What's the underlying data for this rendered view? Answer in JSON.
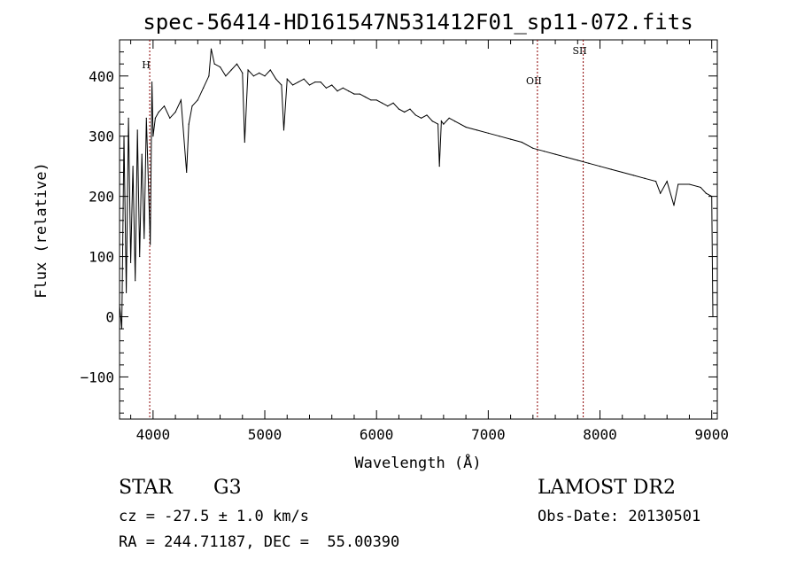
{
  "chart_data": {
    "type": "line",
    "title": "spec-56414-HD161547N531412F01_sp11-072.fits",
    "xlabel": "Wavelength (Å)",
    "ylabel": "Flux (relative)",
    "xlim": [
      3700,
      9050
    ],
    "ylim": [
      -170,
      460
    ],
    "x_ticks": [
      4000,
      5000,
      6000,
      7000,
      8000,
      9000
    ],
    "y_ticks": [
      -100,
      0,
      100,
      200,
      300,
      400
    ],
    "grid": false,
    "line_color": "#000000",
    "marker_color": "#8b0000",
    "series": [
      {
        "x": [
          3700,
          3720,
          3740,
          3760,
          3780,
          3800,
          3820,
          3840,
          3860,
          3880,
          3900,
          3920,
          3940,
          3960,
          3975,
          3990,
          4000,
          4020,
          4050,
          4100,
          4150,
          4200,
          4250,
          4300,
          4320,
          4350,
          4400,
          4450,
          4500,
          4520,
          4550,
          4600,
          4650,
          4700,
          4750,
          4800,
          4820,
          4850,
          4900,
          4950,
          5000,
          5050,
          5100,
          5150,
          5170,
          5200,
          5250,
          5300,
          5350,
          5400,
          5450,
          5500,
          5550,
          5600,
          5650,
          5700,
          5750,
          5800,
          5850,
          5900,
          5950,
          6000,
          6050,
          6100,
          6150,
          6200,
          6250,
          6300,
          6350,
          6400,
          6450,
          6500,
          6550,
          6563,
          6580,
          6600,
          6650,
          6700,
          6800,
          6900,
          7000,
          7100,
          7200,
          7300,
          7400,
          7500,
          7600,
          7700,
          7800,
          7900,
          8000,
          8100,
          8200,
          8300,
          8400,
          8500,
          8540,
          8600,
          8662,
          8700,
          8800,
          8900,
          8950,
          9000,
          9010
        ],
        "y": [
          20,
          -20,
          300,
          40,
          330,
          90,
          250,
          60,
          310,
          100,
          270,
          130,
          330,
          210,
          120,
          390,
          300,
          330,
          340,
          350,
          330,
          340,
          360,
          240,
          320,
          350,
          360,
          380,
          400,
          445,
          420,
          415,
          400,
          410,
          420,
          405,
          290,
          410,
          400,
          405,
          400,
          410,
          395,
          385,
          310,
          395,
          385,
          390,
          395,
          385,
          390,
          390,
          380,
          385,
          375,
          380,
          375,
          370,
          370,
          365,
          360,
          360,
          355,
          350,
          355,
          345,
          340,
          345,
          335,
          330,
          335,
          325,
          320,
          250,
          325,
          320,
          330,
          325,
          315,
          310,
          305,
          300,
          295,
          290,
          280,
          275,
          270,
          265,
          260,
          255,
          250,
          245,
          240,
          235,
          230,
          225,
          205,
          225,
          185,
          220,
          220,
          215,
          205,
          200,
          0
        ]
      }
    ],
    "line_markers": [
      {
        "label": "H",
        "x": 3970
      },
      {
        "label": "OII",
        "x": 7440
      },
      {
        "label": "SII",
        "x": 7850
      }
    ]
  },
  "info": {
    "object_type": "STAR",
    "subclass": "G3",
    "survey": "LAMOST DR2",
    "cz": "cz = -27.5 ± 1.0 km/s",
    "obs_date": "Obs-Date: 20130501",
    "coords": "RA = 244.71187, DEC =  55.00390"
  }
}
